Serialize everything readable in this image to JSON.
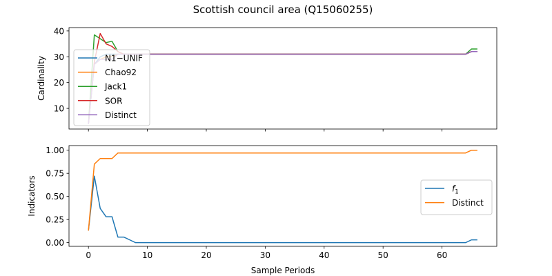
{
  "figure": {
    "title": "Scottish council area (Q15060255)"
  },
  "chart_data": [
    {
      "type": "line",
      "xlabel": "",
      "ylabel": "Cardinality",
      "xlim": [
        -3.3,
        69.3
      ],
      "ylim": [
        2.0,
        41.3
      ],
      "yticks": [
        10,
        20,
        30,
        40
      ],
      "xticks": [
        0,
        10,
        20,
        30,
        40,
        50,
        60
      ],
      "show_xticklabels": false,
      "legend_position": "center-left",
      "series": [
        {
          "name": "N1−UNIF",
          "color": "#1f77b4",
          "x": [
            0,
            1,
            2,
            3,
            4,
            5,
            6,
            7,
            8,
            64,
            65,
            66
          ],
          "y": [
            4,
            27,
            30,
            31,
            31,
            31,
            31,
            31,
            31,
            31,
            32,
            32
          ]
        },
        {
          "name": "Chao92",
          "color": "#ff7f0e",
          "x": [
            0,
            1,
            2,
            3,
            4,
            5,
            6,
            7,
            8,
            64,
            65,
            66
          ],
          "y": [
            4,
            27,
            29,
            30,
            30,
            31,
            31,
            31,
            31,
            31,
            32,
            32
          ]
        },
        {
          "name": "Jack1",
          "color": "#2ca02c",
          "x": [
            0,
            1,
            2,
            3,
            4,
            5,
            6,
            7,
            8,
            64,
            65,
            66
          ],
          "y": [
            4,
            38.5,
            37,
            35.5,
            36,
            32,
            31,
            31,
            31,
            31,
            33,
            33
          ]
        },
        {
          "name": "SOR",
          "color": "#d62728",
          "x": [
            0,
            1,
            2,
            3,
            4,
            5,
            6,
            7,
            8,
            64,
            65,
            66
          ],
          "y": [
            4,
            28,
            39,
            35,
            34,
            32,
            31,
            31,
            31,
            31,
            32,
            32
          ]
        },
        {
          "name": "Distinct",
          "color": "#9467bd",
          "x": [
            0,
            1,
            2,
            3,
            4,
            5,
            6,
            7,
            8,
            64,
            65,
            66
          ],
          "y": [
            4,
            27,
            29,
            29,
            29,
            31,
            31,
            31,
            31,
            31,
            32,
            32
          ]
        }
      ]
    },
    {
      "type": "line",
      "xlabel": "Sample Periods",
      "ylabel": "Indicators",
      "xlim": [
        -3.3,
        69.3
      ],
      "ylim": [
        -0.04,
        1.05
      ],
      "yticks": [
        0.0,
        0.25,
        0.5,
        0.75,
        1.0
      ],
      "ytick_labels": [
        "0.00",
        "0.25",
        "0.50",
        "0.75",
        "1.00"
      ],
      "xticks": [
        0,
        10,
        20,
        30,
        40,
        50,
        60
      ],
      "show_xticklabels": true,
      "legend_position": "center-right",
      "series": [
        {
          "name": "f1",
          "name_main": "f",
          "name_sub": "1",
          "color": "#1f77b4",
          "x": [
            0,
            1,
            2,
            3,
            4,
            5,
            6,
            7,
            8,
            64,
            65,
            66
          ],
          "y": [
            0.13,
            0.72,
            0.37,
            0.28,
            0.28,
            0.06,
            0.06,
            0.03,
            0.0,
            0.0,
            0.03,
            0.03
          ]
        },
        {
          "name": "Distinct",
          "color": "#ff7f0e",
          "x": [
            0,
            1,
            2,
            3,
            4,
            5,
            6,
            7,
            8,
            64,
            65,
            66
          ],
          "y": [
            0.13,
            0.85,
            0.91,
            0.91,
            0.91,
            0.97,
            0.97,
            0.97,
            0.97,
            0.97,
            1.0,
            1.0
          ]
        }
      ]
    }
  ]
}
